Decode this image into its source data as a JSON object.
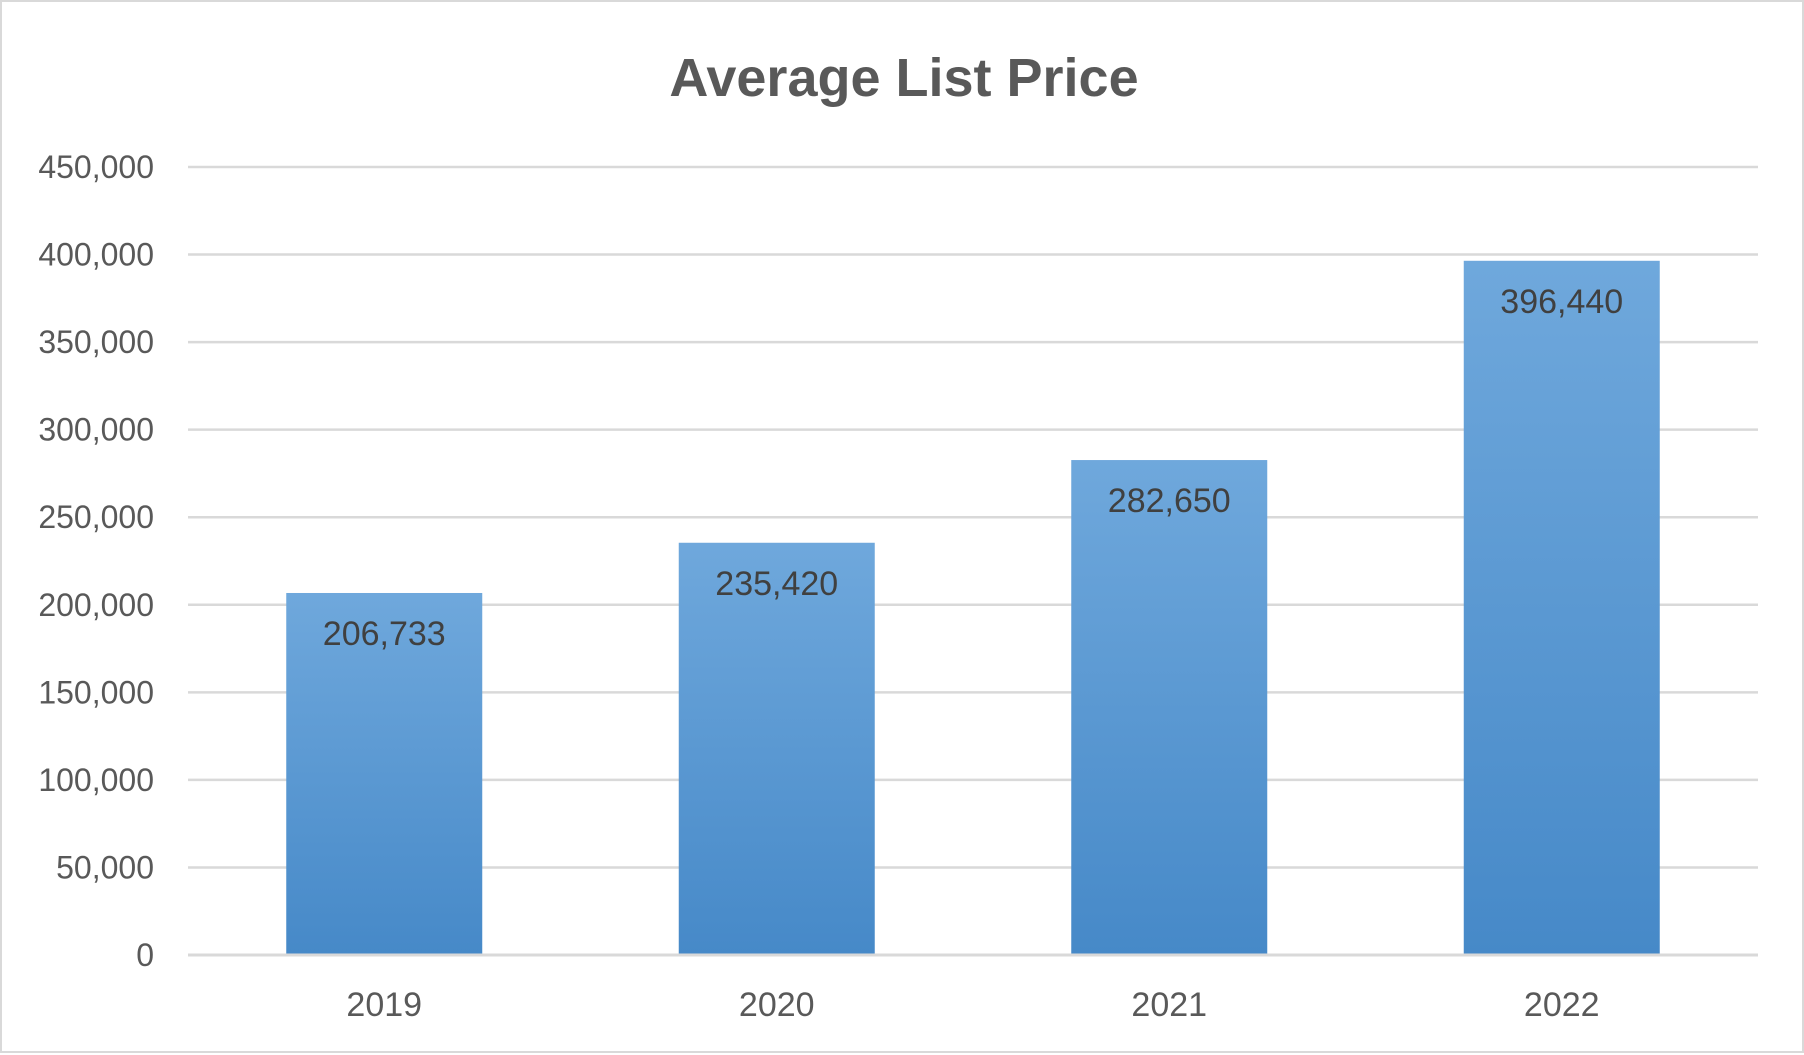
{
  "chart_data": {
    "type": "bar",
    "title": "Average List Price",
    "categories": [
      "2019",
      "2020",
      "2021",
      "2022"
    ],
    "values": [
      206733,
      235420,
      282650,
      396440
    ],
    "data_labels": [
      "206,733",
      "235,420",
      "282,650",
      "396,440"
    ],
    "xlabel": "",
    "ylabel": "",
    "ylim": [
      0,
      450000
    ],
    "y_ticks": [
      {
        "value": 0,
        "label": "0"
      },
      {
        "value": 50000,
        "label": "50,000"
      },
      {
        "value": 100000,
        "label": "100,000"
      },
      {
        "value": 150000,
        "label": "150,000"
      },
      {
        "value": 200000,
        "label": "200,000"
      },
      {
        "value": 250000,
        "label": "250,000"
      },
      {
        "value": 300000,
        "label": "300,000"
      },
      {
        "value": 350000,
        "label": "350,000"
      },
      {
        "value": 400000,
        "label": "400,000"
      },
      {
        "value": 450000,
        "label": "450,000"
      }
    ],
    "grid": true,
    "legend": "none",
    "bar_color_top": "#6fa8dc",
    "bar_color_bottom": "#4689c8",
    "gridline_color": "#d9d9d9",
    "text_color": "#595959"
  }
}
